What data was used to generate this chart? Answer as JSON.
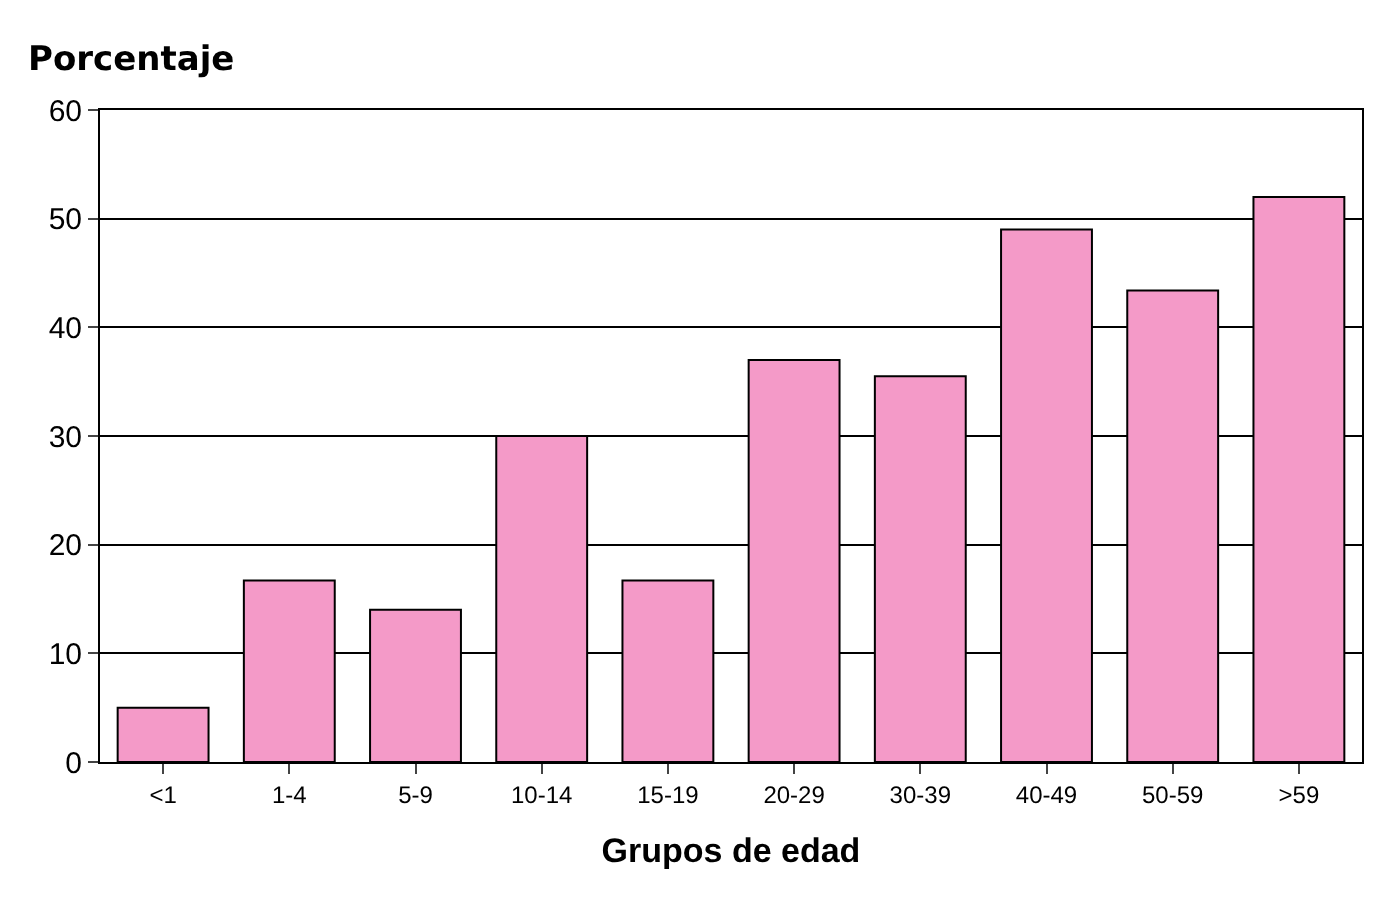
{
  "chart_data": {
    "type": "bar",
    "ylabel": "Porcentaje",
    "xlabel": "Grupos de edad",
    "categories": [
      "<1",
      "1-4",
      "5-9",
      "10-14",
      "15-19",
      "20-29",
      "30-39",
      "40-49",
      "50-59",
      ">59"
    ],
    "values": [
      5,
      16.7,
      14,
      30,
      16.7,
      37,
      35.5,
      49,
      43.4,
      52
    ],
    "color": "#f49ac8",
    "ylim": [
      0,
      60
    ],
    "yticks": [
      0,
      10,
      20,
      30,
      40,
      50,
      60
    ],
    "grid": "y"
  }
}
